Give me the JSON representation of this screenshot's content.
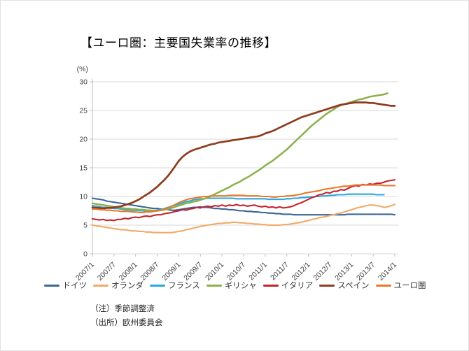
{
  "title": "【ユーロ圏：主要国失業率の推移】",
  "notes": {
    "note1": "（注）季節調整済",
    "note2": "（出所）欧州委員会"
  },
  "chart_data": {
    "type": "line",
    "title": "【ユーロ圏：主要国失業率の推移】",
    "y_axis_unit_label": "(%)",
    "ylim": [
      0,
      30
    ],
    "y_ticks": [
      0,
      5,
      10,
      15,
      20,
      25,
      30
    ],
    "grid": "horizontal",
    "legend_position": "bottom",
    "x_is_monthly": "2007/1 through 2014/1, 85 monthly points",
    "series_point_count": 85,
    "x_tick_labels": [
      "2007/1",
      "2007/7",
      "2008/1",
      "2008/7",
      "2009/1",
      "2009/7",
      "2010/1",
      "2010/7",
      "2011/1",
      "2011/7",
      "2012/1",
      "2012/7",
      "2013/1",
      "2013/7",
      "2014/1"
    ],
    "series": [
      {
        "name": "ドイツ",
        "color": "#3a6596",
        "values": [
          9.7,
          9.6,
          9.5,
          9.4,
          9.2,
          9.1,
          9.0,
          8.9,
          8.8,
          8.7,
          8.6,
          8.5,
          8.4,
          8.3,
          8.2,
          8.1,
          8.0,
          7.9,
          7.9,
          7.8,
          7.8,
          7.7,
          7.6,
          7.6,
          7.7,
          7.8,
          7.9,
          8.0,
          8.1,
          8.1,
          8.2,
          8.1,
          8.1,
          8.0,
          7.9,
          7.9,
          7.8,
          7.8,
          7.7,
          7.7,
          7.6,
          7.5,
          7.5,
          7.4,
          7.4,
          7.3,
          7.3,
          7.2,
          7.2,
          7.1,
          7.1,
          7.0,
          7.0,
          6.9,
          6.9,
          6.9,
          6.8,
          6.8,
          6.8,
          6.8,
          6.8,
          6.8,
          6.8,
          6.8,
          6.8,
          6.8,
          6.8,
          6.8,
          6.8,
          6.8,
          6.8,
          6.9,
          6.9,
          6.9,
          6.9,
          6.9,
          6.9,
          6.9,
          6.9,
          6.9,
          6.9,
          6.9,
          6.9,
          6.9,
          6.8
        ]
      },
      {
        "name": "オランダ",
        "color": "#f2a966",
        "values": [
          5.0,
          4.9,
          4.8,
          4.7,
          4.6,
          4.5,
          4.4,
          4.3,
          4.2,
          4.2,
          4.1,
          4.0,
          4.0,
          3.9,
          3.9,
          3.8,
          3.8,
          3.7,
          3.7,
          3.7,
          3.7,
          3.7,
          3.7,
          3.8,
          3.9,
          4.0,
          4.2,
          4.3,
          4.5,
          4.6,
          4.8,
          4.9,
          5.0,
          5.1,
          5.2,
          5.3,
          5.3,
          5.4,
          5.4,
          5.5,
          5.5,
          5.4,
          5.4,
          5.3,
          5.3,
          5.2,
          5.2,
          5.1,
          5.1,
          5.0,
          5.0,
          5.0,
          5.0,
          5.1,
          5.1,
          5.2,
          5.3,
          5.4,
          5.5,
          5.7,
          5.8,
          6.0,
          6.1,
          6.3,
          6.4,
          6.5,
          6.7,
          6.8,
          7.0,
          7.1,
          7.3,
          7.5,
          7.7,
          7.9,
          8.1,
          8.2,
          8.4,
          8.5,
          8.5,
          8.4,
          8.3,
          8.1,
          8.2,
          8.4,
          8.6
        ]
      },
      {
        "name": "フランス",
        "color": "#27a8e0",
        "values": [
          8.4,
          8.3,
          8.2,
          8.1,
          8.1,
          8.0,
          7.9,
          7.9,
          7.8,
          7.7,
          7.7,
          7.6,
          7.6,
          7.5,
          7.5,
          7.4,
          7.5,
          7.5,
          7.6,
          7.7,
          7.9,
          8.1,
          8.3,
          8.5,
          8.7,
          8.9,
          9.1,
          9.2,
          9.4,
          9.5,
          9.6,
          9.6,
          9.7,
          9.7,
          9.7,
          9.7,
          9.7,
          9.7,
          9.7,
          9.7,
          9.6,
          9.6,
          9.6,
          9.6,
          9.6,
          9.6,
          9.6,
          9.6,
          9.6,
          9.5,
          9.5,
          9.5,
          9.5,
          9.5,
          9.6,
          9.6,
          9.7,
          9.7,
          9.8,
          9.8,
          9.9,
          9.9,
          10.0,
          10.0,
          10.1,
          10.1,
          10.2,
          10.2,
          10.3,
          10.3,
          10.3,
          10.4,
          10.4,
          10.4,
          10.4,
          10.4,
          10.4,
          10.4,
          10.4,
          10.3,
          10.3,
          10.3,
          null,
          null,
          null
        ]
      },
      {
        "name": "ギリシャ",
        "color": "#8cb04a",
        "values": [
          8.8,
          8.7,
          8.6,
          8.5,
          8.4,
          8.3,
          8.2,
          8.1,
          8.0,
          7.9,
          7.9,
          7.8,
          7.8,
          7.7,
          7.7,
          7.6,
          7.6,
          7.5,
          7.5,
          7.6,
          7.7,
          7.8,
          8.0,
          8.2,
          8.4,
          8.6,
          8.8,
          8.9,
          9.1,
          9.2,
          9.4,
          9.6,
          9.8,
          10.1,
          10.4,
          10.7,
          11.0,
          11.3,
          11.6,
          12.0,
          12.3,
          12.6,
          13.0,
          13.3,
          13.7,
          14.1,
          14.5,
          14.9,
          15.4,
          15.8,
          16.2,
          16.7,
          17.2,
          17.7,
          18.2,
          18.8,
          19.4,
          20.0,
          20.6,
          21.2,
          21.8,
          22.4,
          22.9,
          23.4,
          23.9,
          24.4,
          24.8,
          25.2,
          25.6,
          25.9,
          26.1,
          26.3,
          26.5,
          26.7,
          26.9,
          27.0,
          27.2,
          27.4,
          27.5,
          27.6,
          27.7,
          27.8,
          28.0,
          null,
          null
        ]
      },
      {
        "name": "イタリア",
        "color": "#c3232e",
        "values": [
          6.1,
          6.0,
          5.9,
          6.0,
          5.8,
          5.9,
          5.8,
          6.0,
          6.0,
          6.2,
          6.1,
          6.3,
          6.4,
          6.3,
          6.5,
          6.6,
          6.5,
          6.7,
          6.8,
          6.8,
          7.0,
          7.1,
          7.2,
          7.4,
          7.5,
          7.7,
          7.6,
          7.8,
          7.9,
          8.1,
          8.0,
          8.2,
          8.3,
          8.2,
          8.4,
          8.3,
          8.5,
          8.3,
          8.5,
          8.4,
          8.6,
          8.4,
          8.5,
          8.3,
          8.4,
          8.5,
          8.3,
          8.2,
          8.3,
          8.1,
          8.2,
          8.0,
          8.2,
          8.0,
          8.1,
          8.2,
          8.4,
          8.7,
          8.9,
          9.2,
          9.5,
          9.8,
          10.0,
          10.3,
          10.4,
          10.7,
          10.6,
          10.9,
          10.9,
          11.2,
          11.1,
          11.4,
          11.7,
          11.9,
          11.8,
          12.1,
          12.0,
          12.2,
          12.1,
          12.3,
          12.3,
          12.5,
          12.7,
          12.8,
          12.9
        ]
      },
      {
        "name": "スペイン",
        "color": "#8e3b1f",
        "values": [
          8.1,
          8.0,
          8.0,
          7.9,
          8.0,
          8.0,
          8.1,
          8.2,
          8.3,
          8.5,
          8.7,
          8.9,
          9.2,
          9.5,
          9.9,
          10.3,
          10.7,
          11.2,
          11.7,
          12.3,
          12.9,
          13.6,
          14.4,
          15.3,
          16.2,
          16.9,
          17.4,
          17.8,
          18.1,
          18.3,
          18.5,
          18.7,
          18.9,
          19.1,
          19.2,
          19.4,
          19.5,
          19.6,
          19.7,
          19.8,
          19.9,
          20.0,
          20.1,
          20.2,
          20.3,
          20.4,
          20.5,
          20.7,
          21.0,
          21.2,
          21.4,
          21.7,
          22.0,
          22.3,
          22.6,
          22.9,
          23.2,
          23.5,
          23.8,
          24.0,
          24.2,
          24.4,
          24.6,
          24.8,
          25.0,
          25.2,
          25.4,
          25.6,
          25.8,
          26.0,
          26.1,
          26.2,
          26.3,
          26.4,
          26.4,
          26.4,
          26.4,
          26.3,
          26.3,
          26.2,
          26.1,
          26.0,
          25.9,
          25.8,
          25.8
        ]
      },
      {
        "name": "ユーロ圏",
        "color": "#e8792b",
        "values": [
          7.8,
          7.8,
          7.7,
          7.7,
          7.6,
          7.6,
          7.5,
          7.5,
          7.4,
          7.4,
          7.4,
          7.3,
          7.3,
          7.2,
          7.2,
          7.3,
          7.3,
          7.4,
          7.5,
          7.6,
          7.8,
          8.0,
          8.3,
          8.6,
          8.9,
          9.2,
          9.4,
          9.6,
          9.7,
          9.8,
          9.9,
          10.0,
          10.0,
          10.1,
          10.1,
          10.1,
          10.1,
          10.1,
          10.2,
          10.2,
          10.2,
          10.2,
          10.2,
          10.1,
          10.1,
          10.1,
          10.1,
          10.0,
          10.0,
          10.0,
          9.9,
          9.9,
          10.0,
          10.0,
          10.1,
          10.1,
          10.2,
          10.3,
          10.4,
          10.6,
          10.7,
          10.8,
          10.9,
          11.0,
          11.2,
          11.3,
          11.4,
          11.5,
          11.6,
          11.7,
          11.8,
          11.8,
          11.9,
          12.0,
          12.0,
          12.0,
          12.0,
          12.0,
          12.0,
          12.0,
          12.0,
          11.9,
          11.9,
          11.9,
          11.9
        ]
      }
    ]
  }
}
